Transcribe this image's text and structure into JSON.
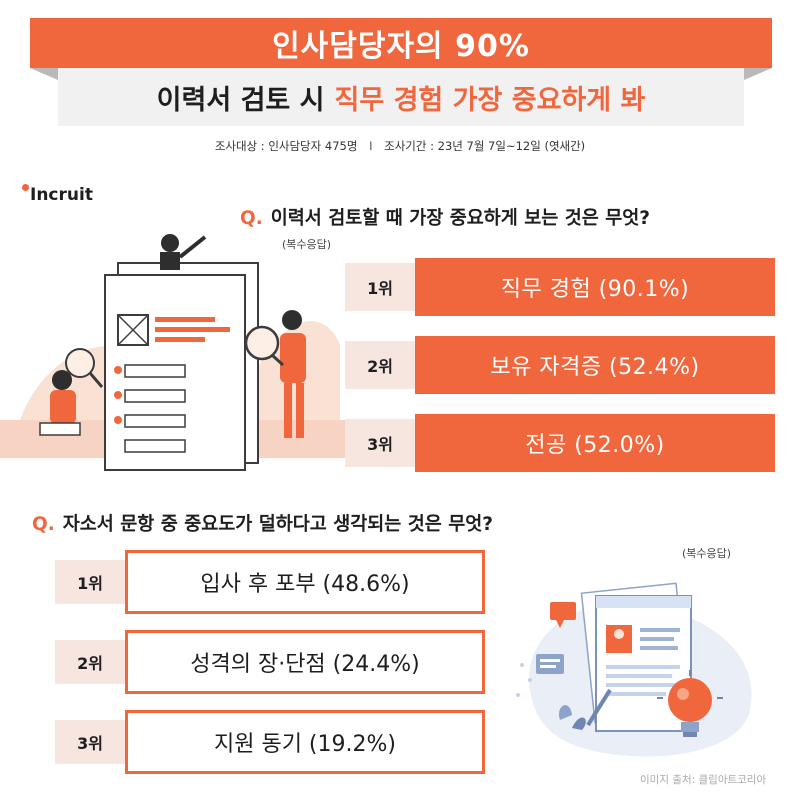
{
  "header": {
    "banner": "인사담당자의 90%",
    "subtitle_plain": "이력서 검토 시",
    "subtitle_highlight": "직무 경험 가장 중요하게 봐",
    "survey_target": "조사대상 : 인사담당자 475명",
    "separator": "I",
    "survey_period": "조사기간 : 23년 7월 7일~12일 (엿새간)"
  },
  "logo": {
    "text": "Incruit"
  },
  "question1": {
    "q_mark": "Q.",
    "text": "이력서 검토할 때 가장 중요하게 보는 것은 무엇?",
    "note": "(복수응답)",
    "items": [
      {
        "rank": "1위",
        "label": "직무 경험 (90.1%)",
        "value": 90.1
      },
      {
        "rank": "2위",
        "label": "보유 자격증 (52.4%)",
        "value": 52.4
      },
      {
        "rank": "3위",
        "label": "전공 (52.0%)",
        "value": 52.0
      }
    ]
  },
  "question2": {
    "q_mark": "Q.",
    "text": "자소서 문항 중 중요도가 덜하다고 생각되는 것은 무엇?",
    "note": "(복수응답)",
    "items": [
      {
        "rank": "1위",
        "label": "입사 후 포부 (48.6%)",
        "value": 48.6
      },
      {
        "rank": "2위",
        "label": "성격의 장·단점 (24.4%)",
        "value": 24.4
      },
      {
        "rank": "3위",
        "label": "지원 동기 (19.2%)",
        "value": 19.2
      }
    ]
  },
  "credit": "이미지 출처: 클립아트코리아",
  "colors": {
    "accent": "#f0673e",
    "rank_bg": "#f7e6df",
    "band_bg": "#f1f1f1"
  },
  "icons": [
    "resume-illustration",
    "people-with-magnifier",
    "document-with-chat-icon",
    "lightbulb-icon"
  ]
}
